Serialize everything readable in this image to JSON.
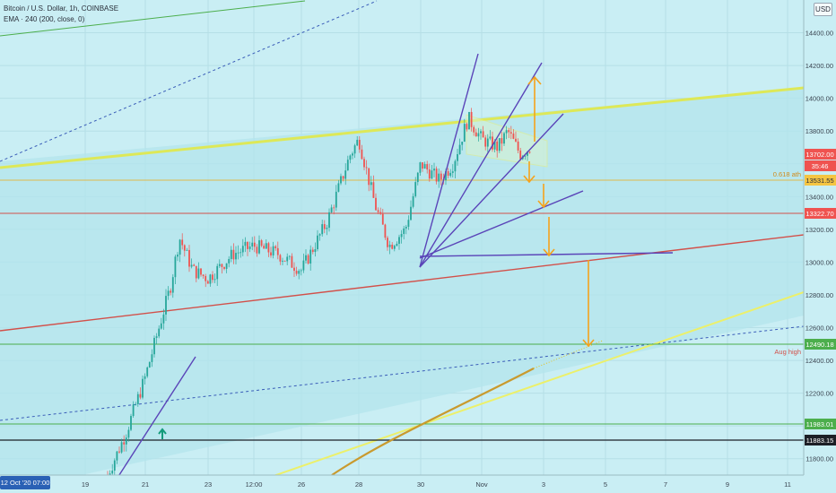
{
  "header": {
    "symbol_line": "Bitcoin / U.S. Dollar, 1h, COINBASE",
    "indicator_line": "EMA · 240 (200, close, 0)",
    "currency_button": "USD"
  },
  "colors": {
    "background": "#c9eef4",
    "candle_up": "#26a69a",
    "candle_down": "#ef5350",
    "red_line": "#d2504a",
    "yellow_line": "#dde858",
    "purple_line": "#5a44b8",
    "orange_arrow": "#f5a21b",
    "ema": "#c99a2e",
    "green_line": "#4cae4c",
    "dotted_line": "#3a5db8"
  },
  "chart_data": {
    "type": "candlestick",
    "title": "Bitcoin / U.S. Dollar, 1h, COINBASE",
    "indicator": "EMA · 240 (200, close, 0)",
    "ylim": [
      11700,
      14600
    ],
    "y_ticks": [
      11800,
      12000,
      12200,
      12400,
      12600,
      12800,
      13000,
      13200,
      13400,
      13600,
      13800,
      14000,
      14200,
      14400
    ],
    "x_ticks": [
      "19",
      "21",
      "23",
      "12:00",
      "26",
      "28",
      "30",
      "Nov",
      "3",
      "5",
      "7",
      "9",
      "11"
    ],
    "crosshair_date": "12 Oct '20  07:00",
    "price_path": [
      {
        "t": "19 Oct",
        "p": 11700
      },
      {
        "t": "20 Oct",
        "p": 11950
      },
      {
        "t": "20 Oct 18:00",
        "p": 12300
      },
      {
        "t": "21 Oct",
        "p": 12850
      },
      {
        "t": "21 Oct 12:00",
        "p": 13150
      },
      {
        "t": "22 Oct",
        "p": 12950
      },
      {
        "t": "23 Oct",
        "p": 12900
      },
      {
        "t": "24 Oct",
        "p": 13050
      },
      {
        "t": "25 Oct",
        "p": 13100
      },
      {
        "t": "26 Oct",
        "p": 13050
      },
      {
        "t": "26 Oct 18:00",
        "p": 12950
      },
      {
        "t": "27 Oct",
        "p": 13250
      },
      {
        "t": "27 Oct 18:00",
        "p": 13650
      },
      {
        "t": "28 Oct",
        "p": 13750
      },
      {
        "t": "28 Oct 12:00",
        "p": 13350
      },
      {
        "t": "29 Oct",
        "p": 13100
      },
      {
        "t": "29 Oct 12:00",
        "p": 13200
      },
      {
        "t": "30 Oct",
        "p": 13600
      },
      {
        "t": "30 Oct 12:00",
        "p": 13500
      },
      {
        "t": "31 Oct",
        "p": 13600
      },
      {
        "t": "31 Oct 12:00",
        "p": 13880
      },
      {
        "t": "1 Nov",
        "p": 13750
      },
      {
        "t": "1 Nov 12:00",
        "p": 13700
      },
      {
        "t": "2 Nov",
        "p": 13800
      },
      {
        "t": "2 Nov 12:00",
        "p": 13660
      },
      {
        "t": "2 Nov 18:00",
        "p": 13702
      }
    ],
    "price_labels": [
      {
        "value": "13702.00",
        "kind": "last_price"
      },
      {
        "value": "35:46",
        "kind": "countdown"
      },
      {
        "value": "13531.55",
        "kind": "fib"
      },
      {
        "value": "13322.70",
        "kind": "level"
      },
      {
        "value": "12490.18",
        "kind": "aug_high"
      },
      {
        "value": "11983.01",
        "kind": "level"
      },
      {
        "value": "11883.15",
        "kind": "level"
      }
    ],
    "annotations": [
      {
        "text": "0.618 ath",
        "price": 13531.55
      },
      {
        "text": "Aug high",
        "price": 12490.18
      }
    ],
    "ema_points": [
      {
        "t": "26 Oct 18:00",
        "p": 11700
      },
      {
        "t": "28 Oct",
        "p": 11850
      },
      {
        "t": "30 Oct",
        "p": 12000
      },
      {
        "t": "1 Nov",
        "p": 12150
      },
      {
        "t": "2 Nov",
        "p": 12250
      }
    ]
  }
}
